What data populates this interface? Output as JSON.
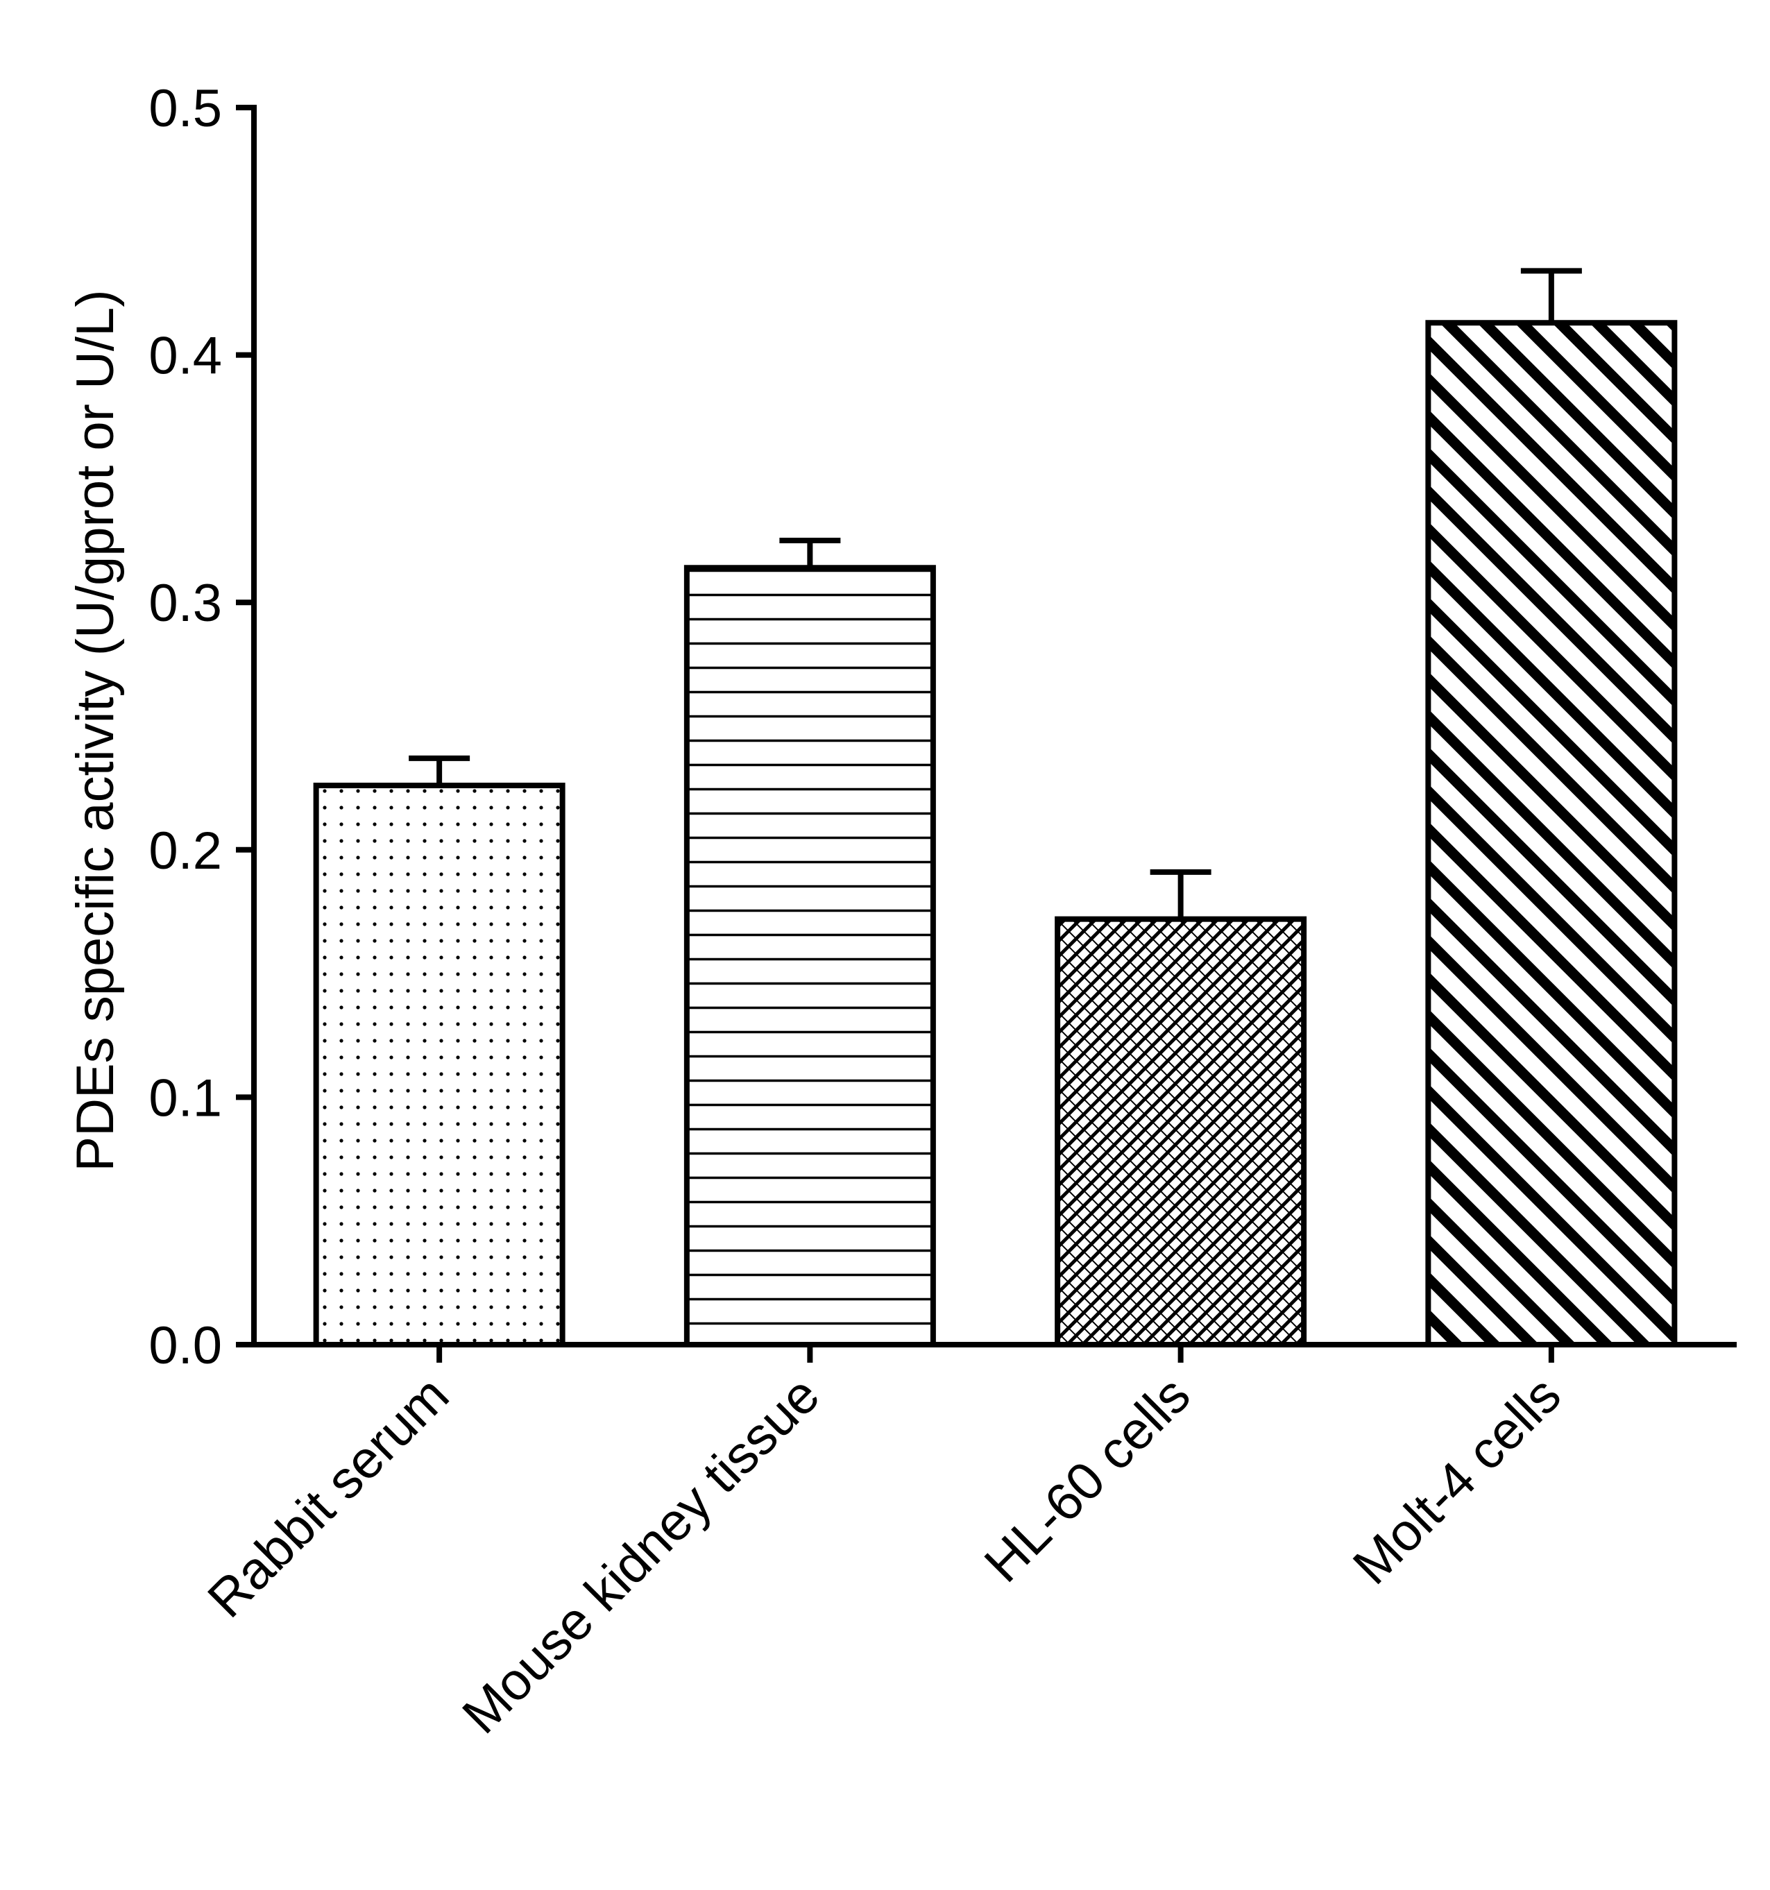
{
  "chart_data": {
    "type": "bar",
    "title": "",
    "xlabel": "",
    "ylabel": "PDEs specific activity (U/gprot or U/L)",
    "ylim": [
      0,
      0.5
    ],
    "yticks": [
      0.0,
      0.1,
      0.2,
      0.3,
      0.4,
      0.5
    ],
    "ytick_labels": [
      "0.0",
      "0.1",
      "0.2",
      "0.3",
      "0.4",
      "0.5"
    ],
    "categories": [
      "Rabbit serum",
      "Mouse kidney tissue",
      "HL-60 cells",
      "Molt-4 cells"
    ],
    "values": [
      0.226,
      0.314,
      0.172,
      0.413
    ],
    "errors": [
      0.011,
      0.011,
      0.019,
      0.021
    ],
    "fill_patterns": [
      "dots",
      "horizontal-lines",
      "crosshatch",
      "diagonal-stripes"
    ],
    "grid": false,
    "legend": "none",
    "colors": {
      "stroke": "#000000",
      "background": "#ffffff"
    }
  }
}
